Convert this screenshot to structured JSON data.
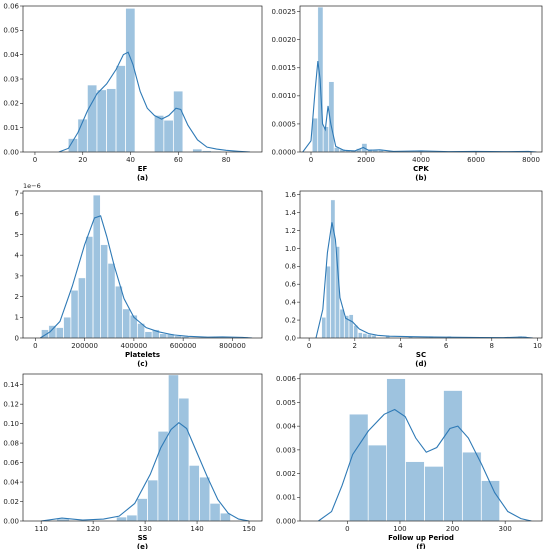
{
  "colors": {
    "bar": "#9ec3df",
    "kde": "#2f7ab6",
    "axis": "#222222"
  },
  "chart_data": [
    {
      "type": "bar",
      "xlabel": "EF",
      "caption": "(a)",
      "xlim": [
        -5,
        95
      ],
      "ylim": [
        0,
        0.06
      ],
      "xticks": [
        0,
        20,
        40,
        60,
        80
      ],
      "yticks": [
        0.0,
        0.01,
        0.02,
        0.03,
        0.04,
        0.05,
        0.06
      ],
      "ytick_labels": [
        "0.00",
        "0.01",
        "0.02",
        "0.03",
        "0.04",
        "0.05",
        "0.06"
      ],
      "bins": [
        [
          14,
          18,
          0.0055
        ],
        [
          18,
          22,
          0.0135
        ],
        [
          22,
          26,
          0.0275
        ],
        [
          26,
          30,
          0.0255
        ],
        [
          30,
          34,
          0.026
        ],
        [
          34,
          38,
          0.0355
        ],
        [
          38,
          42,
          0.059
        ],
        [
          42,
          46,
          0
        ],
        [
          46,
          50,
          0
        ],
        [
          50,
          54,
          0.015
        ],
        [
          54,
          58,
          0.013
        ],
        [
          58,
          62,
          0.025
        ],
        [
          62,
          66,
          0
        ],
        [
          66,
          70,
          0.0012
        ],
        [
          70,
          74,
          0.0005
        ],
        [
          74,
          78,
          0.0003
        ]
      ],
      "kde": [
        [
          10,
          0
        ],
        [
          14,
          0.0015
        ],
        [
          18,
          0.008
        ],
        [
          22,
          0.017
        ],
        [
          26,
          0.024
        ],
        [
          30,
          0.028
        ],
        [
          34,
          0.034
        ],
        [
          37,
          0.04
        ],
        [
          39,
          0.041
        ],
        [
          41,
          0.036
        ],
        [
          44,
          0.025
        ],
        [
          47,
          0.018
        ],
        [
          50,
          0.015
        ],
        [
          53,
          0.0135
        ],
        [
          56,
          0.015
        ],
        [
          59,
          0.018
        ],
        [
          61,
          0.0175
        ],
        [
          64,
          0.011
        ],
        [
          68,
          0.005
        ],
        [
          72,
          0.002
        ],
        [
          76,
          0.0012
        ],
        [
          80,
          0.0007
        ],
        [
          85,
          0.0003
        ],
        [
          90,
          0
        ]
      ]
    },
    {
      "type": "bar",
      "xlabel": "CPK",
      "caption": "(b)",
      "xlim": [
        -400,
        8400
      ],
      "ylim": [
        0,
        0.0026
      ],
      "xticks": [
        0,
        2000,
        4000,
        6000,
        8000
      ],
      "yticks": [
        0.0,
        0.0005,
        0.001,
        0.0015,
        0.002,
        0.0025
      ],
      "ytick_labels": [
        "0.0000",
        "0.0005",
        "0.0010",
        "0.0015",
        "0.0020",
        "0.0025"
      ],
      "bins": [
        [
          50,
          250,
          0.0006
        ],
        [
          250,
          450,
          0.00258
        ],
        [
          450,
          650,
          0.00045
        ],
        [
          650,
          850,
          0.00125
        ],
        [
          850,
          1050,
          8e-05
        ],
        [
          1050,
          1250,
          5e-05
        ],
        [
          1250,
          1450,
          3e-05
        ],
        [
          1450,
          1650,
          3e-05
        ],
        [
          1650,
          1850,
          6e-05
        ],
        [
          1850,
          2050,
          0.00015
        ],
        [
          2050,
          2250,
          5e-05
        ],
        [
          2250,
          2450,
          4e-05
        ],
        [
          2450,
          2650,
          3e-05
        ],
        [
          3900,
          4100,
          3e-05
        ],
        [
          5800,
          6000,
          2e-05
        ],
        [
          7800,
          8000,
          2e-05
        ]
      ],
      "kde": [
        [
          -300,
          0
        ],
        [
          0,
          0.0002
        ],
        [
          150,
          0.0011
        ],
        [
          250,
          0.00162
        ],
        [
          330,
          0.0013
        ],
        [
          420,
          0.0005
        ],
        [
          520,
          0.0004
        ],
        [
          620,
          0.00082
        ],
        [
          720,
          0.0005
        ],
        [
          900,
          0.0001
        ],
        [
          1200,
          3e-05
        ],
        [
          1600,
          2e-05
        ],
        [
          1900,
          8e-05
        ],
        [
          2100,
          3e-05
        ],
        [
          2500,
          4e-05
        ],
        [
          3000,
          1e-05
        ],
        [
          4000,
          2e-05
        ],
        [
          5000,
          5e-06
        ],
        [
          6000,
          1e-05
        ],
        [
          7000,
          5e-06
        ],
        [
          7900,
          1e-05
        ],
        [
          8200,
          0
        ]
      ]
    },
    {
      "type": "bar",
      "xlabel": "Platelets",
      "caption": "(c)",
      "exponent": "1e−6",
      "xlim": [
        -50000,
        920000
      ],
      "ylim": [
        0,
        7.1e-06
      ],
      "xticks": [
        0,
        200000,
        400000,
        600000,
        800000
      ],
      "yticks": [
        0,
        1e-06,
        2e-06,
        3e-06,
        4e-06,
        5e-06,
        6e-06,
        7e-06
      ],
      "ytick_labels": [
        "0",
        "1",
        "2",
        "3",
        "4",
        "5",
        "6",
        "7"
      ],
      "bins": [
        [
          25000,
          55000,
          4e-07
        ],
        [
          55000,
          85000,
          6e-07
        ],
        [
          85000,
          115000,
          5e-07
        ],
        [
          115000,
          145000,
          1e-06
        ],
        [
          145000,
          175000,
          2.3e-06
        ],
        [
          175000,
          205000,
          2.9e-06
        ],
        [
          205000,
          235000,
          4.9e-06
        ],
        [
          235000,
          265000,
          6.9e-06
        ],
        [
          265000,
          295000,
          4.5e-06
        ],
        [
          295000,
          325000,
          3.6e-06
        ],
        [
          325000,
          355000,
          2.5e-06
        ],
        [
          355000,
          385000,
          1.4e-06
        ],
        [
          385000,
          415000,
          1.1e-06
        ],
        [
          415000,
          445000,
          7e-07
        ],
        [
          445000,
          475000,
          3e-07
        ],
        [
          475000,
          505000,
          4e-07
        ],
        [
          505000,
          535000,
          2e-07
        ],
        [
          535000,
          565000,
          2e-07
        ],
        [
          565000,
          595000,
          1e-07
        ],
        [
          595000,
          625000,
          7e-08
        ],
        [
          715000,
          745000,
          5e-08
        ],
        [
          835000,
          865000,
          5e-08
        ]
      ],
      "kde": [
        [
          20000,
          0
        ],
        [
          60000,
          3e-07
        ],
        [
          100000,
          8e-07
        ],
        [
          150000,
          2.5e-06
        ],
        [
          200000,
          4.5e-06
        ],
        [
          240000,
          5.8e-06
        ],
        [
          265000,
          5.9e-06
        ],
        [
          290000,
          4.9e-06
        ],
        [
          320000,
          3.5e-06
        ],
        [
          360000,
          1.9e-06
        ],
        [
          400000,
          1e-06
        ],
        [
          450000,
          5e-07
        ],
        [
          500000,
          3e-07
        ],
        [
          560000,
          1.5e-07
        ],
        [
          620000,
          8e-08
        ],
        [
          700000,
          4e-08
        ],
        [
          760000,
          5e-08
        ],
        [
          840000,
          3e-08
        ],
        [
          880000,
          0
        ]
      ]
    },
    {
      "type": "bar",
      "xlabel": "SC",
      "caption": "(d)",
      "xlim": [
        -0.4,
        10.2
      ],
      "ylim": [
        0,
        1.64
      ],
      "xticks": [
        0,
        2,
        4,
        6,
        8,
        10
      ],
      "yticks": [
        0.0,
        0.2,
        0.4,
        0.6,
        0.8,
        1.0,
        1.2,
        1.4,
        1.6
      ],
      "ytick_labels": [
        "0.0",
        "0.2",
        "0.4",
        "0.6",
        "0.8",
        "1.0",
        "1.2",
        "1.4",
        "1.6"
      ],
      "bins": [
        [
          0.55,
          0.75,
          0.23
        ],
        [
          0.75,
          0.95,
          0.8
        ],
        [
          0.95,
          1.15,
          1.54
        ],
        [
          1.15,
          1.35,
          1.02
        ],
        [
          1.35,
          1.55,
          0.32
        ],
        [
          1.55,
          1.75,
          0.25
        ],
        [
          1.75,
          1.95,
          0.26
        ],
        [
          1.95,
          2.15,
          0.14
        ],
        [
          2.15,
          2.35,
          0.06
        ],
        [
          2.35,
          2.55,
          0.05
        ],
        [
          2.55,
          2.75,
          0.04
        ],
        [
          2.75,
          2.95,
          0.03
        ],
        [
          3.35,
          3.55,
          0.03
        ],
        [
          4.35,
          4.55,
          0.02
        ],
        [
          5.25,
          5.45,
          0.02
        ],
        [
          6.05,
          6.25,
          0.02
        ],
        [
          9.15,
          9.35,
          0.02
        ],
        [
          9.35,
          9.55,
          0.02
        ]
      ],
      "kde": [
        [
          0.3,
          0
        ],
        [
          0.6,
          0.32
        ],
        [
          0.8,
          0.95
        ],
        [
          1.0,
          1.29
        ],
        [
          1.15,
          1.1
        ],
        [
          1.35,
          0.45
        ],
        [
          1.6,
          0.22
        ],
        [
          1.9,
          0.18
        ],
        [
          2.2,
          0.1
        ],
        [
          2.6,
          0.05
        ],
        [
          3.0,
          0.03
        ],
        [
          3.5,
          0.02
        ],
        [
          4.5,
          0.015
        ],
        [
          5.5,
          0.01
        ],
        [
          6.5,
          0.008
        ],
        [
          7.5,
          0.005
        ],
        [
          8.5,
          0.004
        ],
        [
          9.3,
          0.01
        ],
        [
          9.8,
          0
        ]
      ]
    },
    {
      "type": "bar",
      "xlabel": "SS",
      "caption": "(e)",
      "xlim": [
        106.5,
        152.5
      ],
      "ylim": [
        0,
        0.151
      ],
      "xticks": [
        110,
        120,
        130,
        140,
        150
      ],
      "yticks": [
        0.0,
        0.02,
        0.04,
        0.06,
        0.08,
        0.1,
        0.12,
        0.14
      ],
      "ytick_labels": [
        "0.00",
        "0.02",
        "0.04",
        "0.06",
        "0.08",
        "0.10",
        "0.12",
        "0.14"
      ],
      "bins": [
        [
          113,
          115.5,
          0.002
        ],
        [
          124.5,
          126.5,
          0.004
        ],
        [
          126.5,
          128.5,
          0.006
        ],
        [
          128.5,
          130.5,
          0.023
        ],
        [
          130.5,
          132.5,
          0.042
        ],
        [
          132.5,
          134.5,
          0.092
        ],
        [
          134.5,
          136.5,
          0.15
        ],
        [
          136.5,
          138.5,
          0.126
        ],
        [
          138.5,
          140.5,
          0.057
        ],
        [
          140.5,
          142.5,
          0.045
        ],
        [
          142.5,
          144.5,
          0.018
        ],
        [
          144.5,
          146.5,
          0.008
        ]
      ],
      "kde": [
        [
          110,
          0
        ],
        [
          114,
          0.003
        ],
        [
          118,
          0.001
        ],
        [
          122,
          0.002
        ],
        [
          125,
          0.005
        ],
        [
          128,
          0.018
        ],
        [
          131,
          0.048
        ],
        [
          133,
          0.075
        ],
        [
          135,
          0.094
        ],
        [
          136.5,
          0.101
        ],
        [
          138,
          0.095
        ],
        [
          140,
          0.07
        ],
        [
          142,
          0.045
        ],
        [
          144,
          0.022
        ],
        [
          146,
          0.008
        ],
        [
          148,
          0.002
        ],
        [
          150,
          0
        ]
      ]
    },
    {
      "type": "bar",
      "xlabel": "Follow up Period",
      "caption": "(f)",
      "xlim": [
        -90,
        370
      ],
      "ylim": [
        0,
        0.0062
      ],
      "xticks": [
        0,
        100,
        200,
        300
      ],
      "yticks": [
        0.0,
        0.001,
        0.002,
        0.003,
        0.004,
        0.005,
        0.006
      ],
      "ytick_labels": [
        "0.000",
        "0.001",
        "0.002",
        "0.003",
        "0.004",
        "0.005",
        "0.006"
      ],
      "bins": [
        [
          4,
          40,
          0.0045
        ],
        [
          40,
          75,
          0.0032
        ],
        [
          75,
          111,
          0.006
        ],
        [
          111,
          147,
          0.0025
        ],
        [
          147,
          183,
          0.0023
        ],
        [
          183,
          219,
          0.0055
        ],
        [
          219,
          255,
          0.0029
        ],
        [
          255,
          290,
          0.0017
        ]
      ],
      "kde": [
        [
          -55,
          0
        ],
        [
          -30,
          0.0004
        ],
        [
          -10,
          0.0015
        ],
        [
          10,
          0.0028
        ],
        [
          40,
          0.0038
        ],
        [
          70,
          0.0045
        ],
        [
          90,
          0.0047
        ],
        [
          110,
          0.0044
        ],
        [
          130,
          0.0035
        ],
        [
          150,
          0.0029
        ],
        [
          170,
          0.0031
        ],
        [
          195,
          0.0039
        ],
        [
          210,
          0.004
        ],
        [
          230,
          0.0035
        ],
        [
          255,
          0.0024
        ],
        [
          280,
          0.0012
        ],
        [
          305,
          0.0004
        ],
        [
          330,
          0.0001
        ],
        [
          350,
          0
        ]
      ]
    }
  ]
}
